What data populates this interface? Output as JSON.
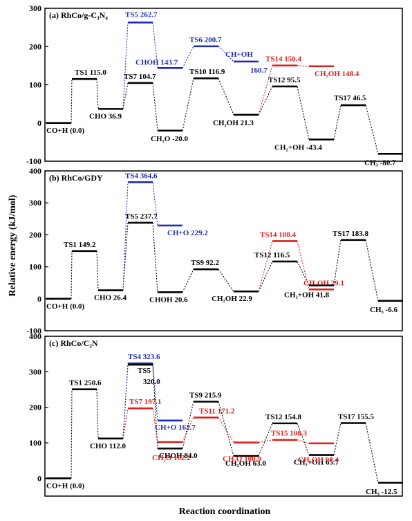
{
  "figure": {
    "ylabel": "Relative energy (kJ/mol)",
    "xlabel": "Reaction coordination"
  },
  "colors": {
    "black": "#000000",
    "blue": "#1f2bb8",
    "red": "#e0201a"
  },
  "chart_data": [
    {
      "type": "line",
      "title": "(a) RhCo/g-C₃N₄",
      "ylim": [
        -100,
        300
      ],
      "yticks": [
        "300",
        "200",
        "100",
        "0",
        "-100"
      ],
      "levels": [
        {
          "name": "L0",
          "x": 0,
          "y": 0,
          "color": "black",
          "label": "CO+H (0.0)"
        },
        {
          "name": "L1",
          "x": 1,
          "y": 115,
          "color": "black",
          "label": "TS1  115.0"
        },
        {
          "name": "L2",
          "x": 2,
          "y": 36.9,
          "color": "black",
          "label": "CHO 36.9"
        },
        {
          "name": "L3",
          "x": 3,
          "y": 262.7,
          "color": "blue",
          "label": "TS5  262.7"
        },
        {
          "name": "L3b",
          "x": 3,
          "y": 104.7,
          "color": "black",
          "label": "TS7  104.7"
        },
        {
          "name": "L4",
          "x": 4,
          "y": 143.7,
          "color": "blue",
          "label": "CHOH 143.7"
        },
        {
          "name": "L4b",
          "x": 4,
          "y": -20,
          "color": "black",
          "label": "CH₂O -20.0"
        },
        {
          "name": "L5",
          "x": 5,
          "y": 200.7,
          "color": "blue",
          "label": "TS6  200.7"
        },
        {
          "name": "L5b",
          "x": 5,
          "y": 116.9,
          "color": "black",
          "label": "TS10  116.9"
        },
        {
          "name": "L6",
          "x": 6,
          "y": 160.7,
          "color": "blue",
          "label": "CH+OH"
        },
        {
          "name": "L6b",
          "x": 6,
          "y": 21.3,
          "color": "black",
          "label": "CH₂OH 21.3"
        },
        {
          "name": "L7",
          "x": 7,
          "y": 150.4,
          "color": "red",
          "label": "TS14  150.4"
        },
        {
          "name": "L7b",
          "x": 7,
          "y": 95.5,
          "color": "black",
          "label": "TS12  95.5"
        },
        {
          "name": "L8",
          "x": 8,
          "y": 148.4,
          "color": "red",
          "label": "CH₃OH 148.4"
        },
        {
          "name": "L8b",
          "x": 8,
          "y": -43.4,
          "color": "black",
          "label": "CH₂+OH -43.4"
        },
        {
          "name": "L9",
          "x": 9,
          "y": 46.5,
          "color": "black",
          "label": "TS17  46.5"
        },
        {
          "name": "L10",
          "x": 10,
          "y": -80.7,
          "color": "black",
          "label": "CH₃ -80.7"
        }
      ],
      "extra_labels": [
        {
          "text": "160.7",
          "color": "blue",
          "x": 6,
          "y": 160.7
        }
      ],
      "paths": [
        {
          "color": "black",
          "seq": [
            "L0",
            "L1",
            "L2",
            "L3b",
            "L4b",
            "L5b",
            "L6b",
            "L7b",
            "L8b",
            "L9",
            "L10"
          ]
        },
        {
          "color": "blue",
          "seq": [
            "L2",
            "L3",
            "L4",
            "L5",
            "L6"
          ]
        },
        {
          "color": "red",
          "seq": [
            "L6b",
            "L7",
            "L8"
          ]
        }
      ]
    },
    {
      "type": "line",
      "title": "(b) RhCo/GDY",
      "ylim": [
        -100,
        400
      ],
      "yticks": [
        "400",
        "300",
        "200",
        "100",
        "0",
        "-100"
      ],
      "levels": [
        {
          "name": "L0",
          "x": 0,
          "y": 0,
          "color": "black",
          "label": "CO+H (0.0)"
        },
        {
          "name": "L1",
          "x": 1,
          "y": 149.2,
          "color": "black",
          "label": "TS1  149.2"
        },
        {
          "name": "L2",
          "x": 2,
          "y": 26.4,
          "color": "black",
          "label": "CHO 26.4"
        },
        {
          "name": "L3",
          "x": 3,
          "y": 364.6,
          "color": "blue",
          "label": "TS4  364.6"
        },
        {
          "name": "L3b",
          "x": 3,
          "y": 237.7,
          "color": "black",
          "label": "TS5  237.7"
        },
        {
          "name": "L4",
          "x": 4,
          "y": 229.2,
          "color": "blue",
          "label": "CH+O 229.2"
        },
        {
          "name": "L4b",
          "x": 4,
          "y": 20.6,
          "color": "black",
          "label": "CHOH 20.6"
        },
        {
          "name": "L5",
          "x": 5,
          "y": 92.2,
          "color": "black",
          "label": "TS9  92.2"
        },
        {
          "name": "L6",
          "x": 6,
          "y": 22.9,
          "color": "black",
          "label": "CH₂OH 22.9"
        },
        {
          "name": "L7",
          "x": 7,
          "y": 180.4,
          "color": "red",
          "label": "TS14  180.4"
        },
        {
          "name": "L7b",
          "x": 7,
          "y": 116.5,
          "color": "black",
          "label": "TS12  116.5"
        },
        {
          "name": "L8",
          "x": 8,
          "y": 29.1,
          "color": "red",
          "label": "CH₃OH 29.1"
        },
        {
          "name": "L8b",
          "x": 8,
          "y": 41.8,
          "color": "black",
          "label": "CH₂+OH 41.8"
        },
        {
          "name": "L9",
          "x": 9,
          "y": 183.8,
          "color": "black",
          "label": "TS17  183.8"
        },
        {
          "name": "L10",
          "x": 10,
          "y": -6.6,
          "color": "black",
          "label": "CH₃ -6.6"
        }
      ],
      "extra_labels": [],
      "paths": [
        {
          "color": "black",
          "seq": [
            "L0",
            "L1",
            "L2",
            "L3b",
            "L4b",
            "L5",
            "L6",
            "L7b",
            "L8b",
            "L9",
            "L10"
          ]
        },
        {
          "color": "blue",
          "seq": [
            "L2",
            "L3",
            "L4"
          ]
        },
        {
          "color": "red",
          "seq": [
            "L6",
            "L7",
            "L8"
          ]
        }
      ]
    },
    {
      "type": "line",
      "title": "(c) RhCo/C₂N",
      "ylim": [
        -50,
        400
      ],
      "yticks": [
        "400",
        "300",
        "200",
        "100",
        "0"
      ],
      "levels": [
        {
          "name": "L0",
          "x": 0,
          "y": 0,
          "color": "black",
          "label": "CO+H (0.0)"
        },
        {
          "name": "L1",
          "x": 1,
          "y": 250.6,
          "color": "black",
          "label": "TS1  250.6"
        },
        {
          "name": "L2",
          "x": 2,
          "y": 112,
          "color": "black",
          "label": "CHO 112.0"
        },
        {
          "name": "L3",
          "x": 3,
          "y": 323.6,
          "color": "blue",
          "label": "TS4  323.6"
        },
        {
          "name": "L3b",
          "x": 3,
          "y": 320,
          "color": "black",
          "label": "TS5"
        },
        {
          "name": "L3c",
          "x": 3,
          "y": 197.1,
          "color": "red",
          "label": "TS7  197.1"
        },
        {
          "name": "L4",
          "x": 4,
          "y": 162.7,
          "color": "blue",
          "label": "CH+O 162.7"
        },
        {
          "name": "L4b",
          "x": 4,
          "y": 84,
          "color": "black",
          "label": "CHOH 84.0"
        },
        {
          "name": "L4c",
          "x": 4,
          "y": 102.2,
          "color": "red",
          "label": "CH₂O 102.2"
        },
        {
          "name": "L5",
          "x": 5,
          "y": 215.9,
          "color": "black",
          "label": "TS9  215.9"
        },
        {
          "name": "L5c",
          "x": 5,
          "y": 171.2,
          "color": "red",
          "label": "TS11  171.2"
        },
        {
          "name": "L6",
          "x": 6,
          "y": 63,
          "color": "black",
          "label": "CH₂OH 63.0"
        },
        {
          "name": "L6c",
          "x": 6,
          "y": 100.9,
          "color": "red",
          "label": "CH₃O 100.9"
        },
        {
          "name": "L7",
          "x": 7,
          "y": 154.8,
          "color": "black",
          "label": "TS12  154.8"
        },
        {
          "name": "L7c",
          "x": 7,
          "y": 108.3,
          "color": "red",
          "label": "TS15  108.3"
        },
        {
          "name": "L8",
          "x": 8,
          "y": 65.7,
          "color": "black",
          "label": "CH₂+OH 65.7"
        },
        {
          "name": "L8c",
          "x": 8,
          "y": 98.4,
          "color": "red",
          "label": "CH₃OH 98.4"
        },
        {
          "name": "L9",
          "x": 9,
          "y": 155.5,
          "color": "black",
          "label": "TS17  155.5"
        },
        {
          "name": "L10",
          "x": 10,
          "y": -12.5,
          "color": "black",
          "label": "CH₃ -12.5"
        }
      ],
      "extra_labels": [
        {
          "text": "320.0",
          "color": "black",
          "x": 3,
          "y": 320
        }
      ],
      "paths": [
        {
          "color": "black",
          "seq": [
            "L0",
            "L1",
            "L2",
            "L3b",
            "L4b",
            "L5",
            "L6",
            "L7",
            "L8",
            "L9",
            "L10"
          ]
        },
        {
          "color": "blue",
          "seq": [
            "L2",
            "L3",
            "L4"
          ]
        },
        {
          "color": "red",
          "seq": [
            "L2",
            "L3c",
            "L4c",
            "L5c",
            "L6c",
            "L7c",
            "L8c"
          ]
        }
      ]
    }
  ]
}
